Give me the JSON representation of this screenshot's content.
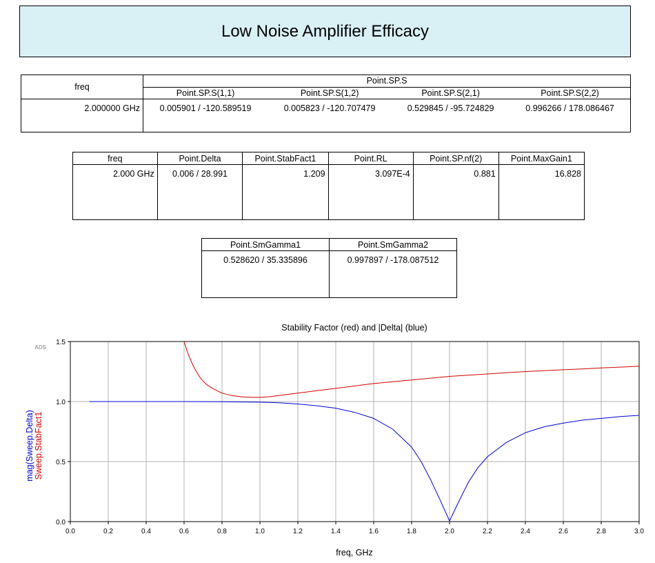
{
  "title": "Low Noise Amplifier Efficacy",
  "table_sp": {
    "freq_header": "freq",
    "group_header": "Point.SP.S",
    "sub_headers": [
      "Point.SP.S(1,1)",
      "Point.SP.S(1,2)",
      "Point.SP.S(2,1)",
      "Point.SP.S(2,2)"
    ],
    "freq_value": "2.000000 GHz",
    "values": [
      "0.005901 / -120.589519",
      "0.005823 / -120.707479",
      "0.529845 / -95.724829",
      "0.996266 / 178.086467"
    ]
  },
  "table_point": {
    "headers": [
      "freq",
      "Point.Delta",
      "Point.StabFact1",
      "Point.RL",
      "Point.SP.nf(2)",
      "Point.MaxGain1"
    ],
    "values": [
      "2.000 GHz",
      "0.006 / 28.991",
      "1.209",
      "3.097E-4",
      "0.881",
      "16.828"
    ]
  },
  "table_gamma": {
    "headers": [
      "Point.SmGamma1",
      "Point.SmGamma2"
    ],
    "values": [
      "0.528620 / 35.335896",
      "0.997897 / -178.087512"
    ]
  },
  "chart_data": {
    "type": "line",
    "title": "Stability Factor (red) and |Delta| (blue)",
    "xlabel": "freq, GHz",
    "ylabel_lines": [
      "mag(Sweep.Delta)",
      "Sweep.StabFact1"
    ],
    "watermark": "ADS",
    "xlim": [
      0.0,
      3.0
    ],
    "ylim": [
      0.0,
      1.5
    ],
    "xticks": [
      "0.0",
      "0.2",
      "0.4",
      "0.6",
      "0.8",
      "1.0",
      "1.2",
      "1.4",
      "1.6",
      "1.8",
      "2.0",
      "2.2",
      "2.4",
      "2.6",
      "2.8",
      "3.0"
    ],
    "yticks": [
      "0.0",
      "0.5",
      "1.0",
      "1.5"
    ],
    "grid": true,
    "colors": {
      "stabfact": "#d00000",
      "delta": "#0000d0",
      "grid": "#b0b0b0"
    },
    "series": [
      {
        "key": "stabfact",
        "x": [
          0.6,
          0.62,
          0.65,
          0.68,
          0.7,
          0.72,
          0.75,
          0.8,
          0.85,
          0.9,
          0.95,
          1.0,
          1.05,
          1.1,
          1.2,
          1.3,
          1.4,
          1.5,
          1.6,
          1.7,
          1.8,
          1.9,
          2.0,
          2.1,
          2.2,
          2.3,
          2.4,
          2.5,
          2.6,
          2.7,
          2.8,
          2.9,
          3.0
        ],
        "values": [
          1.5,
          1.4,
          1.29,
          1.21,
          1.17,
          1.14,
          1.11,
          1.07,
          1.05,
          1.04,
          1.035,
          1.035,
          1.04,
          1.05,
          1.07,
          1.09,
          1.11,
          1.13,
          1.15,
          1.165,
          1.18,
          1.195,
          1.21,
          1.22,
          1.23,
          1.24,
          1.25,
          1.257,
          1.265,
          1.272,
          1.28,
          1.287,
          1.295
        ]
      },
      {
        "key": "delta",
        "x": [
          0.1,
          0.2,
          0.4,
          0.6,
          0.8,
          1.0,
          1.1,
          1.2,
          1.3,
          1.4,
          1.5,
          1.6,
          1.7,
          1.8,
          1.85,
          1.9,
          1.95,
          2.0,
          2.05,
          2.1,
          2.15,
          2.2,
          2.3,
          2.4,
          2.5,
          2.6,
          2.7,
          2.8,
          2.9,
          3.0
        ],
        "values": [
          1.0,
          1.0,
          1.0,
          1.0,
          0.998,
          0.995,
          0.99,
          0.98,
          0.965,
          0.945,
          0.91,
          0.86,
          0.77,
          0.62,
          0.5,
          0.35,
          0.18,
          0.006,
          0.17,
          0.33,
          0.45,
          0.54,
          0.66,
          0.74,
          0.79,
          0.82,
          0.845,
          0.86,
          0.875,
          0.885
        ]
      }
    ]
  }
}
